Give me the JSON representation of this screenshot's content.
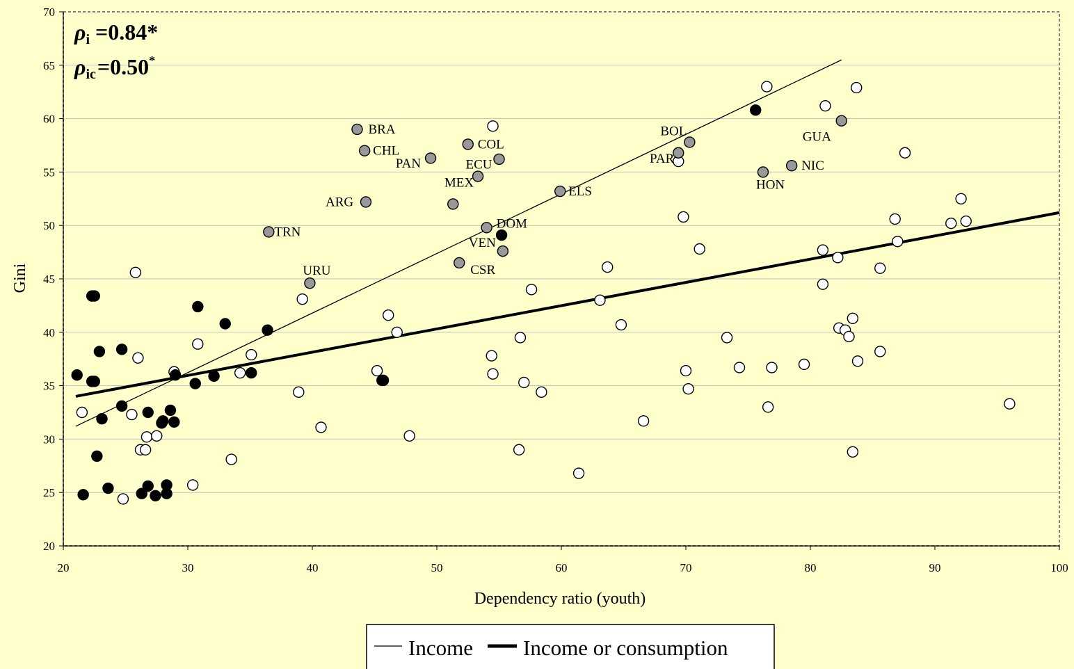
{
  "chart_data": {
    "type": "scatter",
    "xlabel": "Dependency ratio (youth)",
    "ylabel": "Gini",
    "xlim": [
      20,
      100
    ],
    "ylim": [
      20,
      70
    ],
    "xticks": [
      20,
      30,
      40,
      50,
      60,
      70,
      80,
      90,
      100
    ],
    "yticks": [
      20,
      25,
      30,
      35,
      40,
      45,
      50,
      55,
      60,
      65,
      70
    ],
    "grid": "horizontal",
    "annotations": {
      "rho_i_symbol": "ρ",
      "rho_i_sub": "i",
      "rho_i_value": "=0.84*",
      "rho_ic_symbol": "ρ",
      "rho_ic_sub": "ic",
      "rho_ic_value": "=0.50",
      "rho_ic_sup": "*"
    },
    "lines": [
      {
        "name": "Income",
        "x": [
          21,
          82.5
        ],
        "y": [
          31.2,
          65.5
        ],
        "width": 1.3
      },
      {
        "name": "Income or consumption",
        "x": [
          21,
          100
        ],
        "y": [
          34.0,
          51.2
        ],
        "width": 4
      }
    ],
    "legend": {
      "position": "bottom",
      "entries": [
        "Income",
        "Income or consumption"
      ]
    },
    "colors": {
      "background": "#FFFFCC",
      "black_marker": "#000000",
      "gray_marker": "#999999",
      "open_marker": "#FFFFFF"
    },
    "labeled_points": [
      {
        "label": "BRA",
        "x": 43.6,
        "y": 59.0
      },
      {
        "label": "CHL",
        "x": 44.2,
        "y": 57.0
      },
      {
        "label": "PAN",
        "x": 49.5,
        "y": 56.2
      },
      {
        "label": "COL",
        "x": 52.5,
        "y": 57.6
      },
      {
        "label": "ECU",
        "x": 55.0,
        "y": 56.1
      },
      {
        "label": "MEX",
        "x": 53.3,
        "y": 54.6
      },
      {
        "label": "ARG",
        "x": 44.3,
        "y": 52.2
      },
      {
        "label": "TRN",
        "x": 36.5,
        "y": 49.4
      },
      {
        "label": "URU",
        "x": 39.8,
        "y": 44.6
      },
      {
        "label": "DOM",
        "x": 54.0,
        "y": 49.8
      },
      {
        "label": "VEN",
        "x": 55.3,
        "y": 47.6
      },
      {
        "label": "CSR",
        "x": 51.8,
        "y": 46.5
      },
      {
        "label": "ELS",
        "x": 59.9,
        "y": 53.2
      },
      {
        "label": "BOL",
        "x": 70.3,
        "y": 57.8
      },
      {
        "label": "PAR",
        "x": 69.4,
        "y": 56.8
      },
      {
        "label": "GUA",
        "x": 82.5,
        "y": 59.8
      },
      {
        "label": "NIC",
        "x": 78.5,
        "y": 55.6
      },
      {
        "label": "HON",
        "x": 76.2,
        "y": 55.0
      }
    ],
    "gray_points": [
      [
        43.6,
        59.0
      ],
      [
        44.2,
        57.0
      ],
      [
        49.5,
        56.3
      ],
      [
        52.5,
        57.6
      ],
      [
        55.0,
        56.2
      ],
      [
        53.3,
        54.6
      ],
      [
        44.3,
        52.2
      ],
      [
        51.3,
        52.0
      ],
      [
        36.5,
        49.4
      ],
      [
        39.8,
        44.6
      ],
      [
        54.0,
        49.8
      ],
      [
        55.3,
        47.6
      ],
      [
        51.8,
        46.5
      ],
      [
        59.9,
        53.2
      ],
      [
        70.3,
        57.8
      ],
      [
        69.4,
        56.8
      ],
      [
        82.5,
        59.8
      ],
      [
        78.5,
        55.6
      ],
      [
        76.2,
        55.0
      ]
    ],
    "black_points": [
      [
        21.1,
        36.0
      ],
      [
        21.6,
        24.8
      ],
      [
        22.3,
        43.4
      ],
      [
        22.5,
        43.4
      ],
      [
        22.3,
        35.4
      ],
      [
        22.5,
        35.4
      ],
      [
        22.7,
        28.4
      ],
      [
        22.9,
        38.2
      ],
      [
        23.1,
        31.9
      ],
      [
        23.6,
        25.4
      ],
      [
        24.7,
        38.4
      ],
      [
        24.7,
        33.1
      ],
      [
        26.3,
        24.9
      ],
      [
        26.8,
        32.5
      ],
      [
        26.8,
        25.6
      ],
      [
        27.4,
        24.7
      ],
      [
        27.9,
        31.5
      ],
      [
        28.0,
        31.7
      ],
      [
        28.3,
        24.9
      ],
      [
        28.3,
        25.7
      ],
      [
        28.6,
        32.7
      ],
      [
        28.9,
        31.6
      ],
      [
        29.0,
        36.0
      ],
      [
        30.6,
        35.2
      ],
      [
        30.8,
        42.4
      ],
      [
        32.1,
        35.9
      ],
      [
        33.0,
        40.8
      ],
      [
        35.1,
        36.2
      ],
      [
        36.4,
        40.2
      ],
      [
        45.6,
        35.5
      ],
      [
        45.7,
        35.5
      ],
      [
        55.2,
        49.1
      ],
      [
        75.6,
        60.8
      ]
    ],
    "open_points": [
      [
        21.5,
        32.5
      ],
      [
        25.8,
        45.6
      ],
      [
        25.5,
        32.3
      ],
      [
        26.0,
        37.6
      ],
      [
        26.2,
        29.0
      ],
      [
        26.6,
        29.0
      ],
      [
        26.7,
        30.2
      ],
      [
        27.5,
        30.3
      ],
      [
        24.8,
        24.4
      ],
      [
        28.9,
        36.3
      ],
      [
        30.4,
        25.7
      ],
      [
        30.8,
        38.9
      ],
      [
        33.5,
        28.1
      ],
      [
        34.2,
        36.2
      ],
      [
        35.1,
        37.9
      ],
      [
        38.9,
        34.4
      ],
      [
        39.2,
        43.1
      ],
      [
        40.7,
        31.1
      ],
      [
        45.2,
        36.4
      ],
      [
        46.1,
        41.6
      ],
      [
        46.8,
        40.0
      ],
      [
        47.8,
        30.3
      ],
      [
        54.4,
        37.8
      ],
      [
        54.5,
        36.1
      ],
      [
        54.5,
        59.3
      ],
      [
        56.6,
        29.0
      ],
      [
        56.7,
        39.5
      ],
      [
        57.0,
        35.3
      ],
      [
        57.6,
        44.0
      ],
      [
        58.4,
        34.4
      ],
      [
        61.4,
        26.8
      ],
      [
        63.1,
        43.0
      ],
      [
        63.7,
        46.1
      ],
      [
        64.8,
        40.7
      ],
      [
        66.6,
        31.7
      ],
      [
        69.4,
        56.0
      ],
      [
        69.8,
        50.8
      ],
      [
        70.0,
        36.4
      ],
      [
        70.2,
        34.7
      ],
      [
        71.1,
        47.8
      ],
      [
        73.3,
        39.5
      ],
      [
        74.3,
        36.7
      ],
      [
        76.5,
        63.0
      ],
      [
        76.6,
        33.0
      ],
      [
        76.9,
        36.7
      ],
      [
        79.5,
        37.0
      ],
      [
        81.0,
        47.7
      ],
      [
        81.0,
        44.5
      ],
      [
        81.2,
        61.2
      ],
      [
        82.2,
        47.0
      ],
      [
        82.3,
        40.4
      ],
      [
        82.8,
        40.2
      ],
      [
        83.1,
        39.6
      ],
      [
        83.4,
        41.3
      ],
      [
        83.4,
        28.8
      ],
      [
        83.7,
        62.9
      ],
      [
        83.8,
        37.3
      ],
      [
        85.6,
        46.0
      ],
      [
        85.6,
        38.2
      ],
      [
        86.8,
        50.6
      ],
      [
        87.0,
        48.5
      ],
      [
        87.6,
        56.8
      ],
      [
        91.3,
        50.2
      ],
      [
        92.1,
        52.5
      ],
      [
        92.5,
        50.4
      ],
      [
        96.0,
        33.3
      ]
    ]
  }
}
